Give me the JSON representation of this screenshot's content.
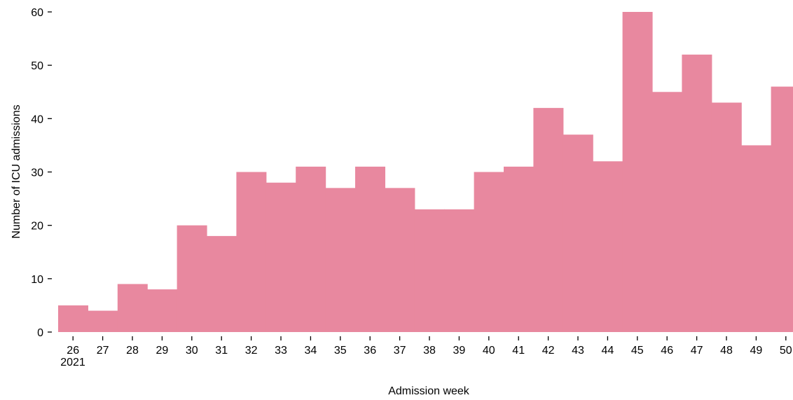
{
  "chart_data": {
    "type": "bar",
    "categories": [
      "26",
      "27",
      "28",
      "29",
      "30",
      "31",
      "32",
      "33",
      "34",
      "35",
      "36",
      "37",
      "38",
      "39",
      "40",
      "41",
      "42",
      "43",
      "44",
      "45",
      "46",
      "47",
      "48",
      "49",
      "50"
    ],
    "year_label": "2021",
    "values": [
      5,
      4,
      9,
      8,
      20,
      18,
      30,
      28,
      31,
      27,
      31,
      27,
      23,
      23,
      30,
      31,
      42,
      37,
      32,
      60,
      45,
      52,
      43,
      35,
      46
    ],
    "xlabel": "Admission week",
    "ylabel": "Number of ICU admissions",
    "yticks": [
      0,
      10,
      20,
      30,
      40,
      50,
      60
    ],
    "ylim": [
      0,
      60
    ],
    "bar_color": "#e8889f",
    "grid": false,
    "legend": "none"
  }
}
